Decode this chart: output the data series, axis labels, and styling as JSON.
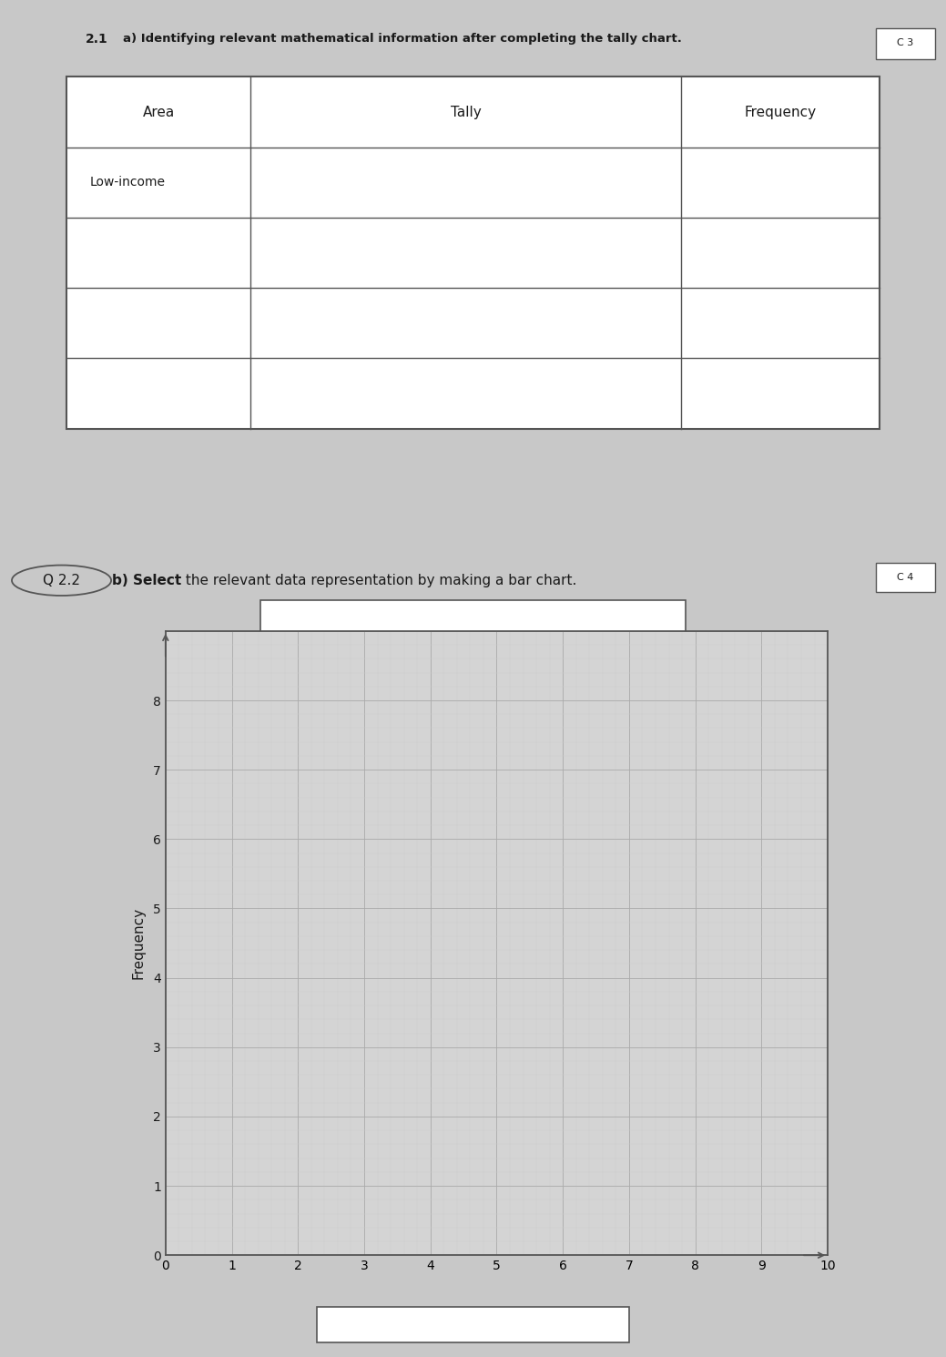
{
  "background_color": "#c8c8c8",
  "paper_bg": "#f0f0f0",
  "paper_bg2": "#eeeeee",
  "section1": {
    "question_num": "2.1",
    "question_text": "a) Identifying relevant mathematical information after completing the tally chart.",
    "mark": "C 3",
    "table_headers": [
      "Area",
      "Tally",
      "Frequency"
    ],
    "table_rows": [
      "Low-income",
      "",
      "",
      ""
    ]
  },
  "section2": {
    "question_num": "Q 2.2",
    "question_text_bold": "b) Select",
    "question_text_rest": " the relevant data representation by making a bar chart.",
    "mark": "C 4",
    "ylabel": "Frequency",
    "ymax": 9,
    "yticks": [
      0,
      1,
      2,
      3,
      4,
      5,
      6,
      7,
      8
    ]
  },
  "grid_color": "#aaaaaa",
  "grid_minor_color": "#cccccc",
  "graph_bg": "#d4d4d4",
  "text_color": "#1a1a1a",
  "border_color": "#555555"
}
